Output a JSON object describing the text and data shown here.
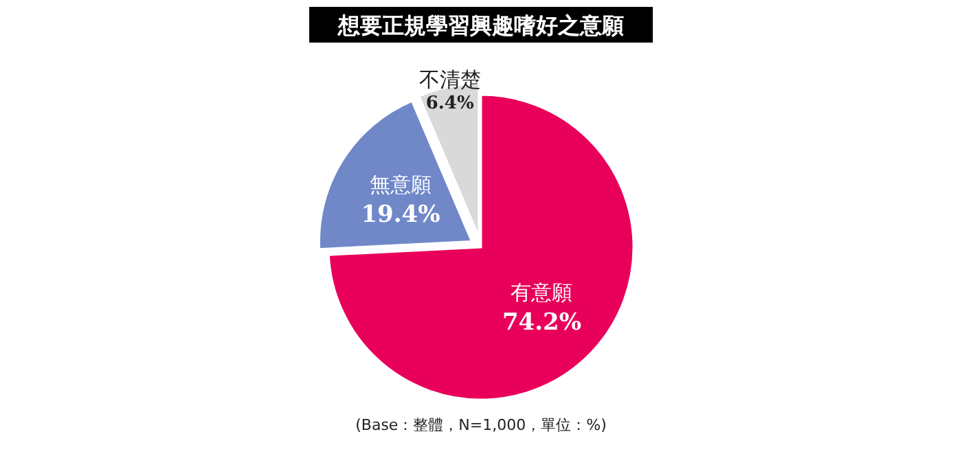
{
  "chart_data": {
    "type": "pie",
    "title": "想要正規學習興趣嗜好之意願",
    "categories": [
      "有意願",
      "無意願",
      "不清楚"
    ],
    "values": [
      74.2,
      19.4,
      6.4
    ],
    "colors": [
      "#e8005a",
      "#7088c8",
      "#d9d9d9"
    ],
    "value_labels": [
      "74.2%",
      "19.4%",
      "6.4%"
    ],
    "annotations": [
      "(Base：整體，N=1,000，單位：%)"
    ]
  }
}
